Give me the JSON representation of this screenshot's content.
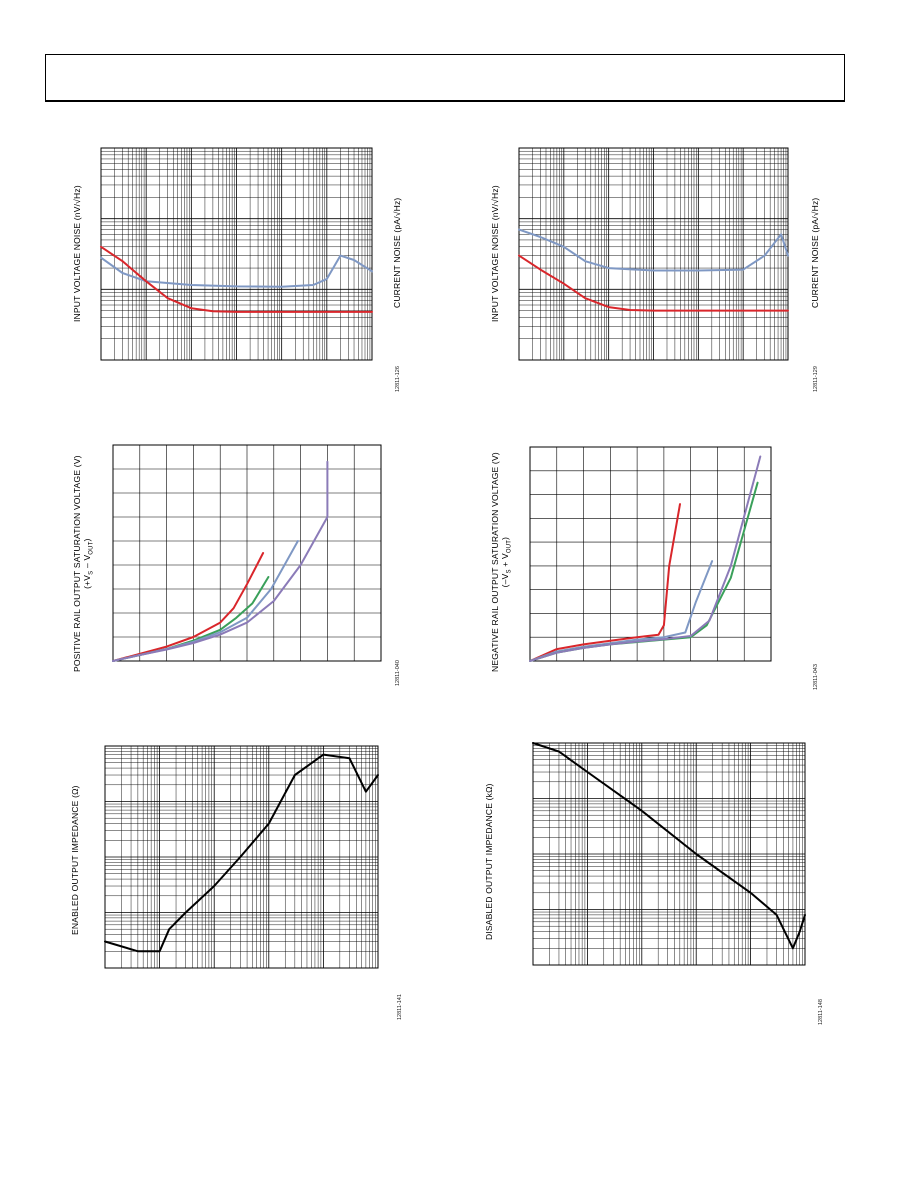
{
  "header": {},
  "colors": {
    "red": "#d9262b",
    "blue": "#7f98c4",
    "green": "#3aa05a",
    "purple": "#8b7bb8",
    "black": "#000000",
    "grid": "#000000"
  },
  "figures": [
    {
      "ylabel": "INPUT VOLTAGE NOISE (nV/√Hz)",
      "y2label": "CURRENT NOISE (pA/√Hz)",
      "fig_id": "12811-126"
    },
    {
      "ylabel": "INPUT VOLTAGE NOISE (nV/√Hz)",
      "y2label": "CURRENT NOISE (pA/√Hz)",
      "fig_id": "12811-129"
    },
    {
      "ylabel_line1": "POSITIVE RAIL OUTPUT SATURATION VOLTAGE (V)",
      "ylabel_line2": "(+V",
      "ylabel_sub1": "S",
      "ylabel_mid": " – V",
      "ylabel_sub2": "OUT",
      "ylabel_end": ")",
      "fig_id": "12811-040"
    },
    {
      "ylabel_line1": "NEGATIVE RAIL OUTPUT SATURATION VOLTAGE (V)",
      "ylabel_line2": "(–V",
      "ylabel_sub1": "S",
      "ylabel_mid": " + V",
      "ylabel_sub2": "OUT",
      "ylabel_end": ")",
      "fig_id": "12811-043"
    },
    {
      "ylabel": "ENABLED OUTPUT IMPEDANCE (Ω)",
      "fig_id": "12811-141"
    },
    {
      "ylabel": "DISABLED OUTPUT IMPEDANCE (kΩ)",
      "fig_id": "12811-148"
    }
  ],
  "chart_data": [
    {
      "type": "line",
      "x_scale": "log",
      "y_scale": "log",
      "grid": true,
      "series": [
        {
          "color": "#7f98c4",
          "x": [
            1,
            3,
            10,
            100,
            1000,
            10000,
            50000,
            100000,
            200000,
            400000,
            1000000
          ],
          "y": [
            28,
            17,
            13,
            11.5,
            11,
            10.9,
            11.5,
            14,
            30,
            26,
            18
          ]
        },
        {
          "color": "#d9262b",
          "x": [
            1,
            3,
            10,
            30,
            100,
            300,
            1000,
            10000,
            1000000
          ],
          "y": [
            40,
            25,
            13,
            7.5,
            5.4,
            4.9,
            4.8,
            4.8,
            4.8
          ]
        }
      ]
    },
    {
      "type": "line",
      "x_scale": "log",
      "y_scale": "log",
      "grid": true,
      "series": [
        {
          "color": "#7f98c4",
          "x": [
            1,
            3,
            10,
            30,
            100,
            1000,
            10000,
            100000,
            300000,
            700000,
            1000000
          ],
          "y": [
            70,
            55,
            40,
            25,
            20,
            18.5,
            18.5,
            19,
            30,
            60,
            30
          ]
        },
        {
          "color": "#d9262b",
          "x": [
            1,
            3,
            10,
            30,
            100,
            300,
            1000,
            10000,
            1000000
          ],
          "y": [
            30,
            19,
            12,
            7.5,
            5.6,
            5.1,
            5.0,
            5.0,
            5.0
          ]
        }
      ]
    },
    {
      "type": "line",
      "grid": true,
      "series": [
        {
          "color": "#d9262b",
          "x": [
            0,
            1,
            2,
            3,
            4,
            4.5,
            5,
            5.6
          ],
          "y": [
            0,
            0.3,
            0.6,
            1,
            1.6,
            2.2,
            3.2,
            4.5
          ]
        },
        {
          "color": "#3aa05a",
          "x": [
            0,
            1,
            2,
            3,
            4,
            4.6,
            5.2,
            5.8
          ],
          "y": [
            0,
            0.25,
            0.5,
            0.85,
            1.3,
            1.8,
            2.4,
            3.5
          ]
        },
        {
          "color": "#7f98c4",
          "x": [
            0,
            1,
            2,
            3,
            4,
            5,
            5.9,
            6.9
          ],
          "y": [
            0,
            0.25,
            0.5,
            0.8,
            1.2,
            1.8,
            3.0,
            5.0
          ]
        },
        {
          "color": "#8b7bb8",
          "x": [
            0,
            1,
            2,
            3,
            4,
            5,
            6,
            7,
            8,
            8.0
          ],
          "y": [
            0,
            0.25,
            0.48,
            0.75,
            1.1,
            1.6,
            2.5,
            4.0,
            6.0,
            8.3
          ]
        }
      ]
    },
    {
      "type": "line",
      "grid": true,
      "series": [
        {
          "color": "#d9262b",
          "x": [
            0,
            1,
            2,
            3,
            4,
            4.8,
            5.0,
            5.2,
            5.6
          ],
          "y": [
            0,
            0.5,
            0.7,
            0.85,
            1.0,
            1.1,
            1.5,
            4.0,
            6.6
          ]
        },
        {
          "color": "#7f98c4",
          "x": [
            0,
            1,
            2,
            3,
            4,
            5,
            5.8,
            6.2,
            6.8
          ],
          "y": [
            0,
            0.4,
            0.6,
            0.75,
            0.9,
            1.0,
            1.2,
            2.5,
            4.2
          ]
        },
        {
          "color": "#3aa05a",
          "x": [
            0,
            1,
            2,
            3,
            4,
            5,
            6,
            6.6,
            7.5,
            8.5
          ],
          "y": [
            0,
            0.35,
            0.55,
            0.7,
            0.8,
            0.9,
            1.0,
            1.5,
            3.5,
            7.5
          ]
        },
        {
          "color": "#8b7bb8",
          "x": [
            0,
            1,
            2,
            3,
            4,
            5,
            6,
            6.7,
            7.5,
            8.6
          ],
          "y": [
            0,
            0.35,
            0.55,
            0.7,
            0.82,
            0.92,
            1.05,
            1.7,
            4.0,
            8.6
          ]
        }
      ]
    },
    {
      "type": "line",
      "x_scale": "log",
      "y_scale": "log",
      "grid": true,
      "series": [
        {
          "color": "#000000",
          "x": [
            10000,
            40000,
            100000,
            150000,
            300000,
            1000000,
            3000000,
            10000000,
            30000000,
            100000000,
            300000000,
            600000000,
            1000000000
          ],
          "y": [
            0.03,
            0.02,
            0.02,
            0.05,
            0.1,
            0.3,
            1,
            4,
            30,
            70,
            60,
            15,
            30
          ]
        }
      ]
    },
    {
      "type": "line",
      "x_scale": "log",
      "y_scale": "log",
      "grid": true,
      "series": [
        {
          "color": "#000000",
          "x": [
            10000,
            30000,
            100000,
            1000000,
            10000000,
            100000000,
            300000000,
            600000000,
            800000000,
            1000000000
          ],
          "y": [
            100,
            70,
            30,
            6,
            1,
            0.2,
            0.08,
            0.02,
            0.04,
            0.08
          ]
        }
      ]
    }
  ]
}
